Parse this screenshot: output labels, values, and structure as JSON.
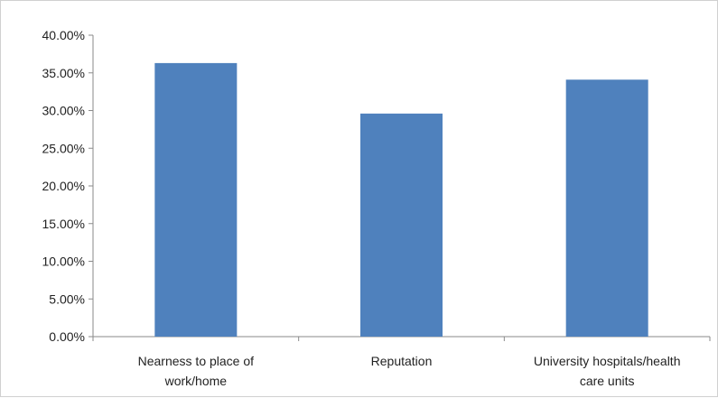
{
  "chart_data": {
    "type": "bar",
    "categories": [
      [
        "Nearness to place of",
        "work/home"
      ],
      [
        "Reputation"
      ],
      [
        "University hospitals/health",
        "care units"
      ]
    ],
    "values": [
      36.3,
      29.6,
      34.1
    ],
    "ylim": [
      0,
      40
    ],
    "yticks": [
      0,
      5,
      10,
      15,
      20,
      25,
      30,
      35,
      40
    ],
    "ytick_labels": [
      "0.00%",
      "5.00%",
      "10.00%",
      "15.00%",
      "20.00%",
      "25.00%",
      "30.00%",
      "35.00%",
      "40.00%"
    ],
    "bar_color": "#4f81bd",
    "grid": false,
    "legend": "none",
    "title": "",
    "xlabel": "",
    "ylabel": ""
  }
}
